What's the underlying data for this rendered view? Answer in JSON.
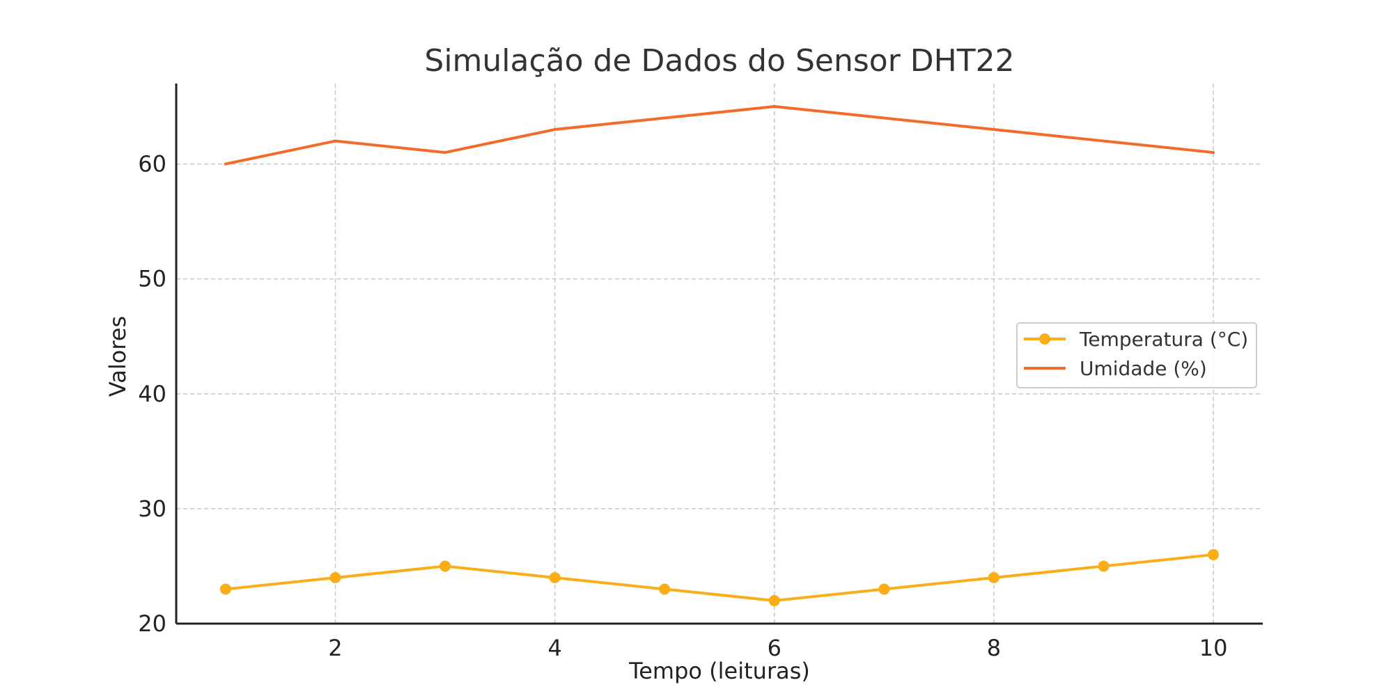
{
  "chart_data": {
    "type": "line",
    "title": "Simulação de Dados do Sensor DHT22",
    "xlabel": "Tempo (leituras)",
    "ylabel": "Valores",
    "x": [
      1,
      2,
      3,
      4,
      5,
      6,
      7,
      8,
      9,
      10
    ],
    "xlim": [
      0.55,
      10.45
    ],
    "ylim": [
      20,
      67
    ],
    "xticks": [
      2,
      4,
      6,
      8,
      10
    ],
    "yticks": [
      20,
      30,
      40,
      50,
      60
    ],
    "grid": true,
    "legend_position": "center-right",
    "series": [
      {
        "name": "Temperatura (°C)",
        "values": [
          23,
          24,
          25,
          24,
          23,
          22,
          23,
          24,
          25,
          26
        ],
        "color": "#FBAD18",
        "marker": "circle"
      },
      {
        "name": "Umidade (%)",
        "values": [
          60,
          62,
          61,
          63,
          64,
          65,
          64,
          63,
          62,
          61
        ],
        "color": "#F26B2A",
        "marker": "none"
      }
    ]
  }
}
